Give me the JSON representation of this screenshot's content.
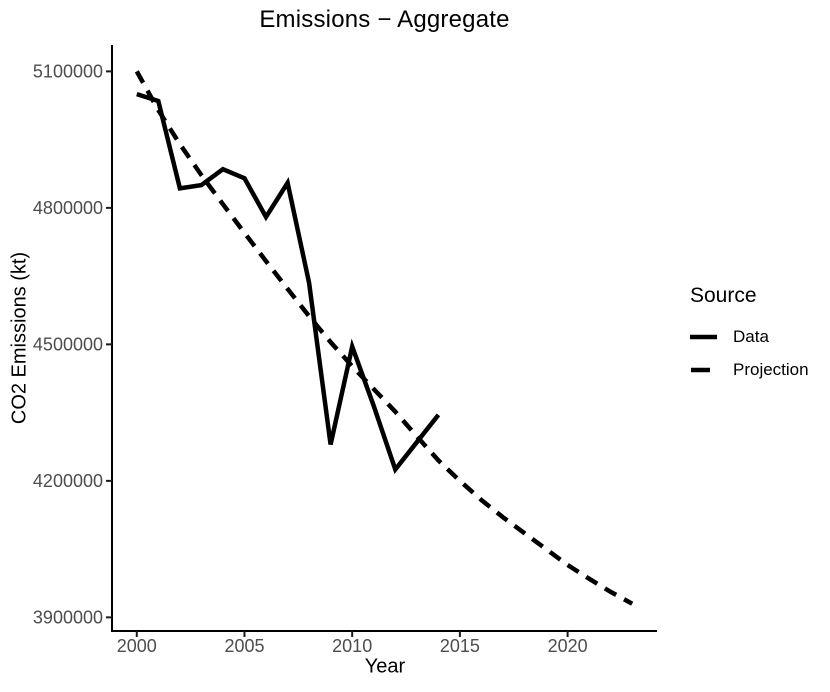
{
  "title": "Emissions − Aggregate",
  "legend": {
    "title": "Source",
    "entries": [
      {
        "label": "Data",
        "line_style": "solid"
      },
      {
        "label": "Projection",
        "line_style": "dashed"
      }
    ]
  },
  "chart_data": {
    "type": "line",
    "title": "Emissions − Aggregate",
    "xlabel": "Year",
    "ylabel": "CO2 Emissions (kt)",
    "x_ticks": [
      2000,
      2005,
      2010,
      2015,
      2020
    ],
    "y_ticks": [
      3900000,
      4200000,
      4500000,
      4800000,
      5100000
    ],
    "xlim": [
      1998.85,
      2024.15
    ],
    "ylim": [
      3870000,
      5158000
    ],
    "grid": false,
    "legend_position": "right",
    "legend_title": "Source",
    "line_color": "#000000",
    "series": [
      {
        "name": "Data",
        "style": "solid",
        "x": [
          2000,
          2001,
          2002,
          2003,
          2004,
          2005,
          2006,
          2007,
          2008,
          2009,
          2010,
          2011,
          2012,
          2013,
          2014
        ],
        "y": [
          5050000,
          5035000,
          4843000,
          4850000,
          4885000,
          4865000,
          4780000,
          4855000,
          4635000,
          4280000,
          4495000,
          4365000,
          4225000,
          4285000,
          4345000
        ]
      },
      {
        "name": "Projection",
        "style": "dashed",
        "x": [
          2000,
          2001,
          2002,
          2003,
          2004,
          2005,
          2006,
          2007,
          2008,
          2009,
          2010,
          2011,
          2012,
          2013,
          2014,
          2015,
          2016,
          2017,
          2018,
          2019,
          2020,
          2021,
          2022,
          2023
        ],
        "y": [
          5100000,
          5015000,
          4940000,
          4872000,
          4808000,
          4745000,
          4683000,
          4622000,
          4562000,
          4505000,
          4452000,
          4402000,
          4352000,
          4298000,
          4245000,
          4200000,
          4158000,
          4120000,
          4085000,
          4050000,
          4015000,
          3985000,
          3956000,
          3930000
        ]
      }
    ]
  }
}
